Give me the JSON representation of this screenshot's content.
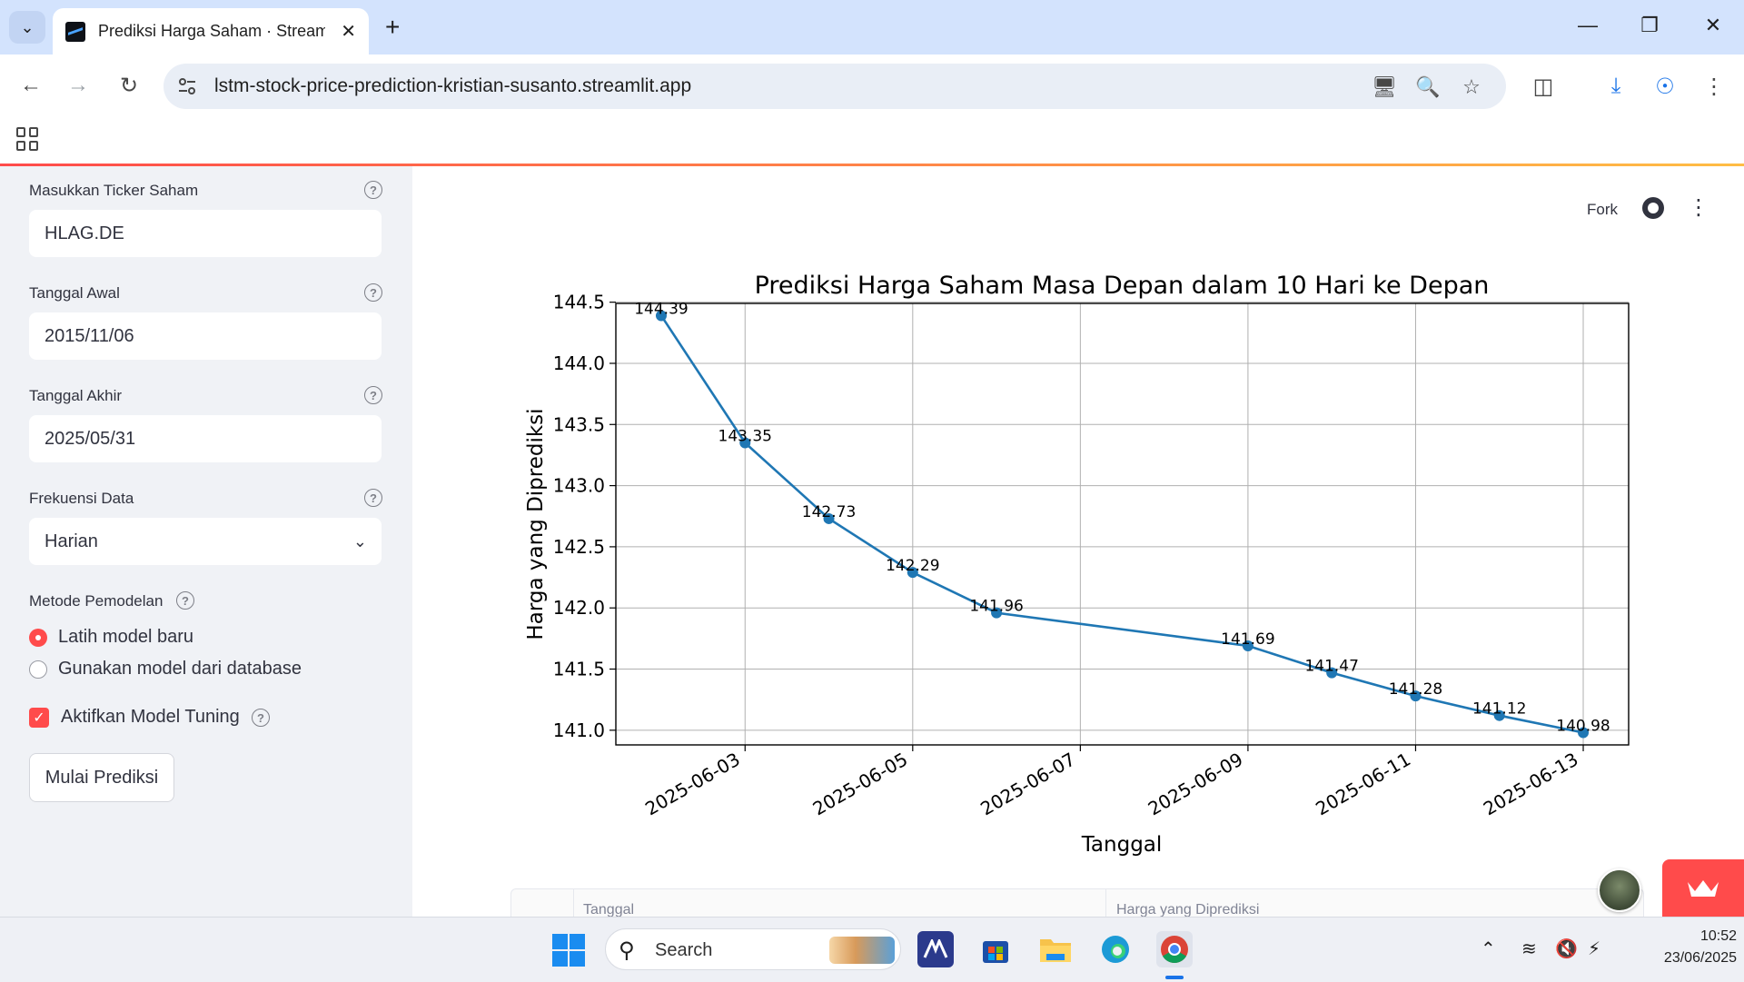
{
  "browser": {
    "tab_title": "Prediksi Harga Saham · Streamlit",
    "url": "lstm-stock-price-prediction-kristian-susanto.streamlit.app"
  },
  "sidebar": {
    "ticker": {
      "label": "Masukkan Ticker Saham",
      "value": "HLAG.DE"
    },
    "start_date": {
      "label": "Tanggal Awal",
      "value": "2015/11/06"
    },
    "end_date": {
      "label": "Tanggal Akhir",
      "value": "2025/05/31"
    },
    "frequency": {
      "label": "Frekuensi Data",
      "value": "Harian"
    },
    "method": {
      "label": "Metode Pemodelan",
      "options": [
        "Latih model baru",
        "Gunakan model dari database"
      ],
      "selected_index": 0
    },
    "tuning": {
      "label": "Aktifkan Model Tuning",
      "checked": true
    },
    "start_button": "Mulai Prediksi"
  },
  "header": {
    "fork_label": "Fork"
  },
  "chart_data": {
    "type": "line",
    "title": "Prediksi Harga Saham Masa Depan dalam 10 Hari ke Depan",
    "xlabel": "Tanggal",
    "ylabel": "Harga yang Diprediksi",
    "x": [
      "2025-06-02",
      "2025-06-03",
      "2025-06-04",
      "2025-06-05",
      "2025-06-06",
      "2025-06-09",
      "2025-06-10",
      "2025-06-11",
      "2025-06-12",
      "2025-06-13"
    ],
    "values": [
      144.39,
      143.35,
      142.73,
      142.29,
      141.96,
      141.69,
      141.47,
      141.28,
      141.12,
      140.98
    ],
    "data_labels": [
      "144.39",
      "143.35",
      "142.73",
      "142.29",
      "141.96",
      "141.69",
      "141.47",
      "141.28",
      "141.12",
      "140.98"
    ],
    "xticks": [
      "2025-06-03",
      "2025-06-05",
      "2025-06-07",
      "2025-06-09",
      "2025-06-11",
      "2025-06-13"
    ],
    "yticks": [
      "141.0",
      "141.5",
      "142.0",
      "142.5",
      "143.0",
      "143.5",
      "144.0",
      "144.5"
    ],
    "ylim": [
      140.88,
      144.49
    ],
    "xlim": [
      "2025-06-01T11:00",
      "2025-06-13T13:00"
    ],
    "grid": true,
    "line_color": "#1f77b4"
  },
  "table": {
    "columns": [
      "Tanggal",
      "Harga yang Diprediksi"
    ]
  },
  "taskbar": {
    "search_label": "Search",
    "time": "10:52",
    "date": "23/06/2025"
  }
}
